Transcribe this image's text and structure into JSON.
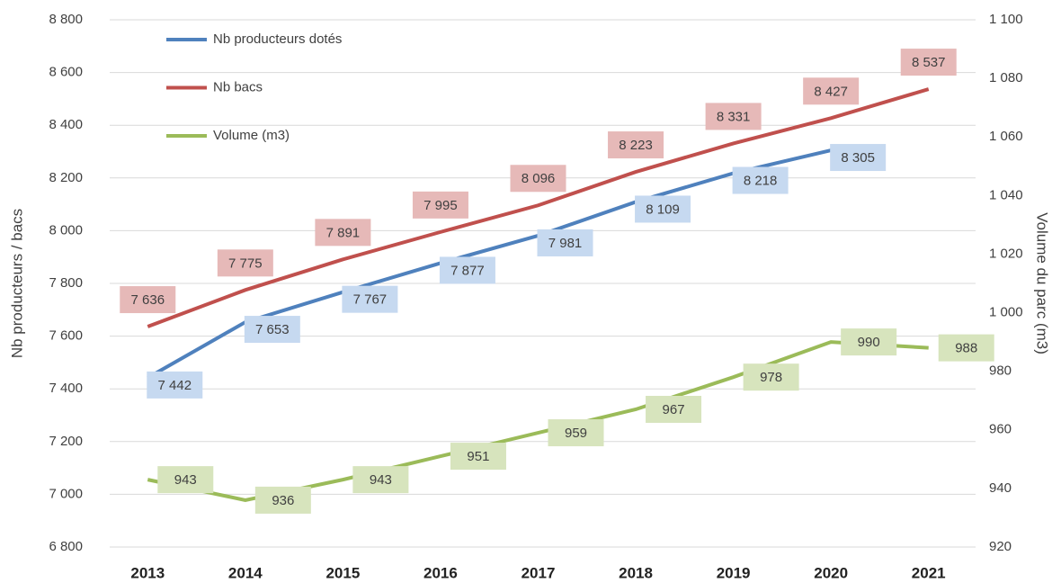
{
  "chart_data": {
    "type": "line",
    "ylabel": "Nb producteurs / bacs",
    "y2label": "Volume du parc (m3)",
    "categories": [
      "2013",
      "2014",
      "2015",
      "2016",
      "2017",
      "2018",
      "2019",
      "2020",
      "2021"
    ],
    "legend": "top-left",
    "grid": true,
    "ylim": [
      6800,
      8800
    ],
    "yticks": [
      {
        "value": 6800,
        "label": "6 800"
      },
      {
        "value": 7000,
        "label": "7 000"
      },
      {
        "value": 7200,
        "label": "7 200"
      },
      {
        "value": 7400,
        "label": "7 400"
      },
      {
        "value": 7600,
        "label": "7 600"
      },
      {
        "value": 7800,
        "label": "7 800"
      },
      {
        "value": 8000,
        "label": "8 000"
      },
      {
        "value": 8200,
        "label": "8 200"
      },
      {
        "value": 8400,
        "label": "8 400"
      },
      {
        "value": 8600,
        "label": "8 600"
      },
      {
        "value": 8800,
        "label": "8 800"
      }
    ],
    "y2lim": [
      920,
      1100
    ],
    "y2ticks": [
      920,
      940,
      960,
      980,
      {
        "value": 1000,
        "label": "1 000"
      },
      {
        "value": 1020,
        "label": "1 020"
      },
      {
        "value": 1040,
        "label": "1 040"
      },
      {
        "value": 1060,
        "label": "1 060"
      },
      {
        "value": 1080,
        "label": "1 080"
      },
      {
        "value": 1100,
        "label": "1 100"
      }
    ],
    "series": [
      {
        "name": "Nb producteurs dotés",
        "color": "#4f81bd",
        "label_color": "#c6d9f0",
        "values": [
          7442,
          7653,
          7767,
          7877,
          7981,
          8109,
          8218,
          8305,
          null
        ],
        "value_labels": [
          "7 442",
          "7 653",
          "7 767",
          "7 877",
          "7 981",
          "8 109",
          "8 218",
          "8 305",
          null
        ]
      },
      {
        "name": "Nb bacs",
        "color": "#c0504d",
        "label_color": "#e6b9b8",
        "values": [
          7636,
          7775,
          7891,
          7995,
          8096,
          8223,
          8331,
          8427,
          8537
        ],
        "value_labels": [
          "7 636",
          "7 775",
          "7 891",
          "7 995",
          "8 096",
          "8 223",
          "8 331",
          "8 427",
          "8 537"
        ]
      },
      {
        "name": "Volume (m3)",
        "color": "#9bbb59",
        "label_color": "#d7e4bd",
        "axis": "y2",
        "values": [
          943,
          936,
          943,
          951,
          959,
          967,
          978,
          990,
          988
        ]
      }
    ]
  }
}
